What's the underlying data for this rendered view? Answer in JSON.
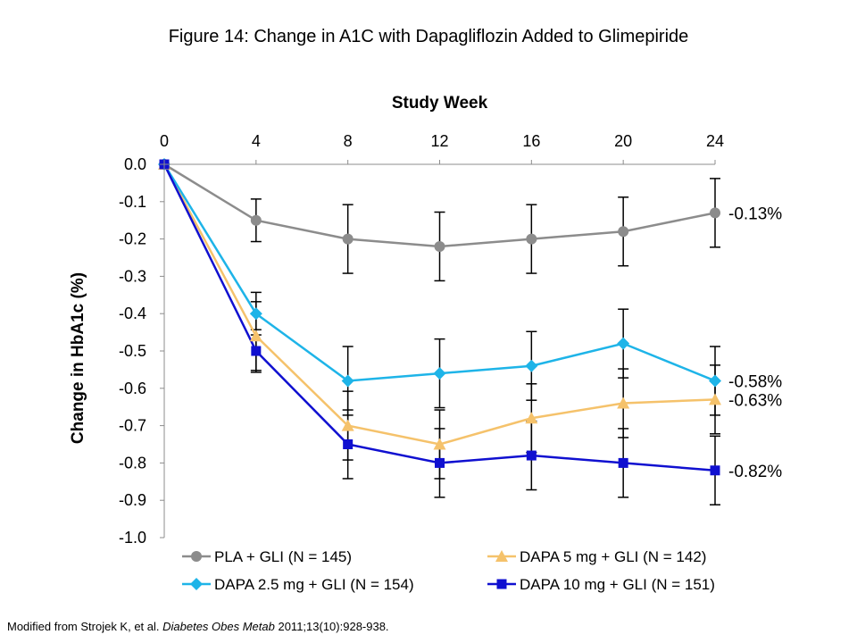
{
  "title": "Figure 14: Change in A1C with Dapagliflozin Added to Glimepiride",
  "footer": {
    "prefix": "Modified from Strojek K, et al. ",
    "journal": "Diabetes Obes Metab",
    "suffix": " 2011;13(10):928-938."
  },
  "chart_data": {
    "type": "line",
    "xlabel": "Study Week",
    "ylabel": "Change in HbA1c (%)",
    "x": [
      0,
      4,
      8,
      12,
      16,
      20,
      24
    ],
    "x_ticks": [
      "0",
      "4",
      "8",
      "12",
      "16",
      "20",
      "24"
    ],
    "xlim": [
      0,
      24
    ],
    "ylim": [
      -1.0,
      0.0
    ],
    "y_ticks": [
      "0.0",
      "-0.1",
      "-0.2",
      "-0.3",
      "-0.4",
      "-0.5",
      "-0.6",
      "-0.7",
      "-0.8",
      "-0.9",
      "-1.0"
    ],
    "y_tick_values": [
      0,
      -0.1,
      -0.2,
      -0.3,
      -0.4,
      -0.5,
      -0.6,
      -0.7,
      -0.8,
      -0.9,
      -1.0
    ],
    "x_axis_position": "top",
    "grid": false,
    "legend_position": "bottom",
    "series": [
      {
        "name": "PLA + GLI (N = 145)",
        "color": "#8c8c8c",
        "marker": "circle",
        "values": [
          0,
          -0.15,
          -0.2,
          -0.22,
          -0.2,
          -0.18,
          -0.13
        ],
        "error": [
          0,
          0.057,
          0.092,
          0.092,
          0.092,
          0.092,
          0.092
        ],
        "end_label": "-0.13%"
      },
      {
        "name": "DAPA 5 mg + GLI (N = 142)",
        "color": "#f5c26b",
        "marker": "triangle",
        "values": [
          0,
          -0.46,
          -0.7,
          -0.75,
          -0.68,
          -0.64,
          -0.63
        ],
        "error": [
          0,
          0.092,
          0.092,
          0.092,
          0.092,
          0.092,
          0.092
        ],
        "end_label": "-0.63%"
      },
      {
        "name": "DAPA 2.5 mg + GLI (N = 154)",
        "color": "#1eb4e8",
        "marker": "diamond",
        "values": [
          0,
          -0.4,
          -0.58,
          -0.56,
          -0.54,
          -0.48,
          -0.58
        ],
        "error": [
          0,
          0.057,
          0.092,
          0.092,
          0.092,
          0.092,
          0.092
        ],
        "end_label": "-0.58%"
      },
      {
        "name": "DAPA 10 mg + GLI (N = 151)",
        "color": "#1010d0",
        "marker": "square",
        "values": [
          0,
          -0.5,
          -0.75,
          -0.8,
          -0.78,
          -0.8,
          -0.82
        ],
        "error": [
          0,
          0.057,
          0.092,
          0.092,
          0.092,
          0.092,
          0.092
        ],
        "end_label": "-0.82%"
      }
    ]
  }
}
